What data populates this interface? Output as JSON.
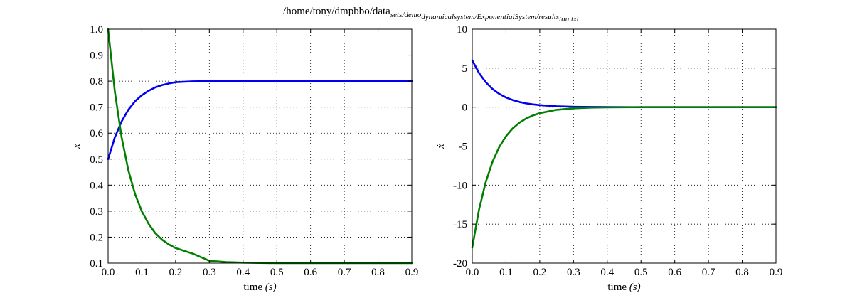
{
  "figure": {
    "title_plain": "/home/tony/dmpbbo/data",
    "title_sub1": "sets/demo",
    "title_sub2": "dynamicalsystem/ExponentialSystem/results",
    "title_sub3": "tau.txt",
    "colors": {
      "blue": "#0000ee",
      "green": "#007f00"
    }
  },
  "chart_data": [
    {
      "type": "line",
      "title": "",
      "xlabel": "time (s)",
      "xlabel_plain": "time ",
      "xlabel_math": "(s)",
      "ylabel": "x",
      "xlim": [
        0.0,
        0.9
      ],
      "ylim": [
        0.1,
        1.0
      ],
      "xticks": [
        0.0,
        0.1,
        0.2,
        0.3,
        0.4,
        0.5,
        0.6,
        0.7,
        0.8,
        0.9
      ],
      "xtick_labels": [
        "0.0",
        "0.1",
        "0.2",
        "0.3",
        "0.4",
        "0.5",
        "0.6",
        "0.7",
        "0.8",
        "0.9"
      ],
      "yticks": [
        0.1,
        0.2,
        0.3,
        0.4,
        0.5,
        0.6,
        0.7,
        0.8,
        0.9,
        1.0
      ],
      "ytick_labels": [
        "0.1",
        "0.2",
        "0.3",
        "0.4",
        "0.5",
        "0.6",
        "0.7",
        "0.8",
        "0.9",
        "1.0"
      ],
      "grid": true,
      "x": [
        0.0,
        0.02,
        0.04,
        0.06,
        0.08,
        0.1,
        0.12,
        0.14,
        0.16,
        0.18,
        0.2,
        0.25,
        0.3,
        0.35,
        0.4,
        0.5,
        0.6,
        0.7,
        0.8,
        0.9
      ],
      "series": [
        {
          "color": "blue",
          "values": [
            0.5,
            0.584,
            0.645,
            0.69,
            0.723,
            0.746,
            0.763,
            0.776,
            0.785,
            0.791,
            0.796,
            0.799,
            0.8,
            0.8,
            0.8,
            0.8,
            0.8,
            0.8,
            0.8,
            0.8
          ]
        },
        {
          "color": "green",
          "values": [
            1.0,
            0.759,
            0.584,
            0.457,
            0.365,
            0.299,
            0.251,
            0.215,
            0.19,
            0.172,
            0.158,
            0.137,
            0.109,
            0.104,
            0.102,
            0.1,
            0.1,
            0.1,
            0.1,
            0.1
          ]
        }
      ]
    },
    {
      "type": "line",
      "title": "",
      "xlabel": "time (s)",
      "xlabel_plain": "time ",
      "xlabel_math": "(s)",
      "ylabel": "ẋ",
      "xlim": [
        0.0,
        0.9
      ],
      "ylim": [
        -20,
        10
      ],
      "xticks": [
        0.0,
        0.1,
        0.2,
        0.3,
        0.4,
        0.5,
        0.6,
        0.7,
        0.8,
        0.9
      ],
      "xtick_labels": [
        "0.0",
        "0.1",
        "0.2",
        "0.3",
        "0.4",
        "0.5",
        "0.6",
        "0.7",
        "0.8",
        "0.9"
      ],
      "yticks": [
        -20,
        -15,
        -10,
        -5,
        0,
        5,
        10
      ],
      "ytick_labels": [
        "-20",
        "-15",
        "-10",
        "-5",
        "0",
        "5",
        "10"
      ],
      "grid": true,
      "x": [
        0.0,
        0.02,
        0.04,
        0.06,
        0.08,
        0.1,
        0.12,
        0.14,
        0.16,
        0.18,
        0.2,
        0.25,
        0.3,
        0.35,
        0.4,
        0.5,
        0.6,
        0.7,
        0.8,
        0.9
      ],
      "series": [
        {
          "color": "blue",
          "values": [
            6.0,
            4.38,
            3.2,
            2.33,
            1.7,
            1.24,
            0.91,
            0.66,
            0.48,
            0.35,
            0.26,
            0.11,
            0.05,
            0.02,
            0.01,
            0.0,
            0.0,
            0.0,
            0.0,
            0.0
          ]
        },
        {
          "color": "green",
          "values": [
            -18.0,
            -13.14,
            -9.6,
            -7.0,
            -5.11,
            -3.73,
            -2.72,
            -1.99,
            -1.45,
            -1.06,
            -0.77,
            -0.34,
            -0.15,
            -0.06,
            -0.03,
            0.0,
            0.0,
            0.0,
            0.0,
            0.0
          ]
        }
      ]
    }
  ]
}
